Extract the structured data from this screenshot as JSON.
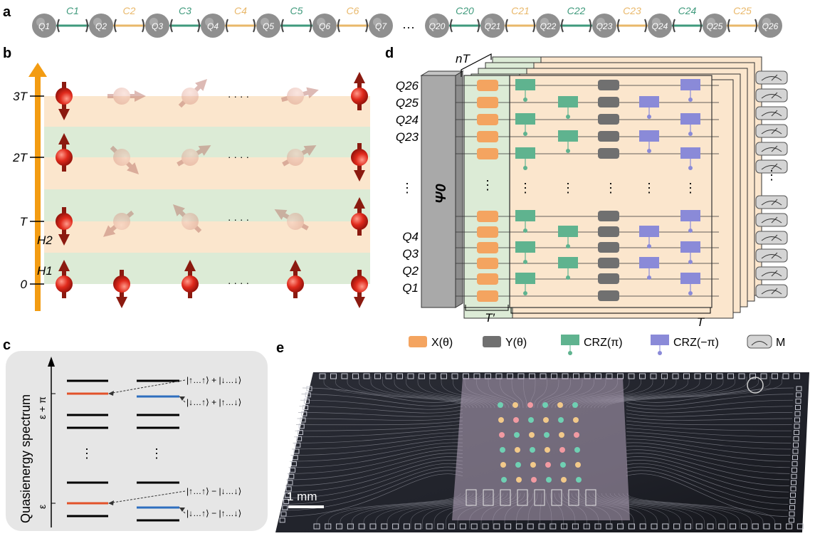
{
  "panels": {
    "a": "a",
    "b": "b",
    "c": "c",
    "d": "d",
    "e": "e"
  },
  "panel_a": {
    "qubits": [
      "Q1",
      "Q2",
      "Q3",
      "Q4",
      "Q5",
      "Q6",
      "Q7",
      "Q20",
      "Q21",
      "Q22",
      "Q23",
      "Q24",
      "Q25",
      "Q26"
    ],
    "couplers": [
      "C1",
      "C2",
      "C3",
      "C4",
      "C5",
      "C6",
      "C20",
      "C21",
      "C22",
      "C23",
      "C24",
      "C25"
    ],
    "ellipsis": "···",
    "colors": {
      "teal": "#3f9a7c",
      "orange": "#e9b86a",
      "node": "#8f8f8f"
    }
  },
  "panel_b": {
    "time_labels": [
      "3T",
      "2T",
      "T",
      "0"
    ],
    "hamiltonians": [
      "H2",
      "H1"
    ],
    "ellipsis": "· · · ·",
    "colors": {
      "arrow": "#f39c12",
      "green_band": "#dcebd6",
      "orange_band": "#fbe6cd",
      "spin": "#d7261e"
    }
  },
  "panel_c": {
    "axis_label": "Quasienergy spectrum",
    "tick_top": "ε + π",
    "tick_bottom": "ε",
    "states": [
      "|↑…↑⟩ + |↓…↓⟩",
      "|↓…↑⟩ + |↑…↓⟩",
      "|↑…↑⟩ − |↓…↓⟩",
      "|↓…↑⟩ − |↑…↓⟩"
    ],
    "dots": "⋮",
    "colors": {
      "red": "#e2522a",
      "blue": "#2f6fbf",
      "box": "#e6e6e6"
    }
  },
  "panel_d": {
    "qubit_top": [
      "Q26",
      "Q25",
      "Q24",
      "Q23"
    ],
    "qubit_bottom": [
      "Q4",
      "Q3",
      "Q2",
      "Q1"
    ],
    "psi": "Ψ0",
    "nT": "nT",
    "T_prime": "T′",
    "T": "T",
    "legend": [
      {
        "name": "X(θ)",
        "color": "#f4a460"
      },
      {
        "name": "Y(θ)",
        "color": "#707070"
      },
      {
        "name": "CRZ(π)",
        "color": "#5fb38f"
      },
      {
        "name": "CRZ(−π)",
        "color": "#8a8ad8"
      },
      {
        "name": "M",
        "color": "#cfcfcf"
      }
    ]
  },
  "panel_e": {
    "scale": "1 mm"
  }
}
